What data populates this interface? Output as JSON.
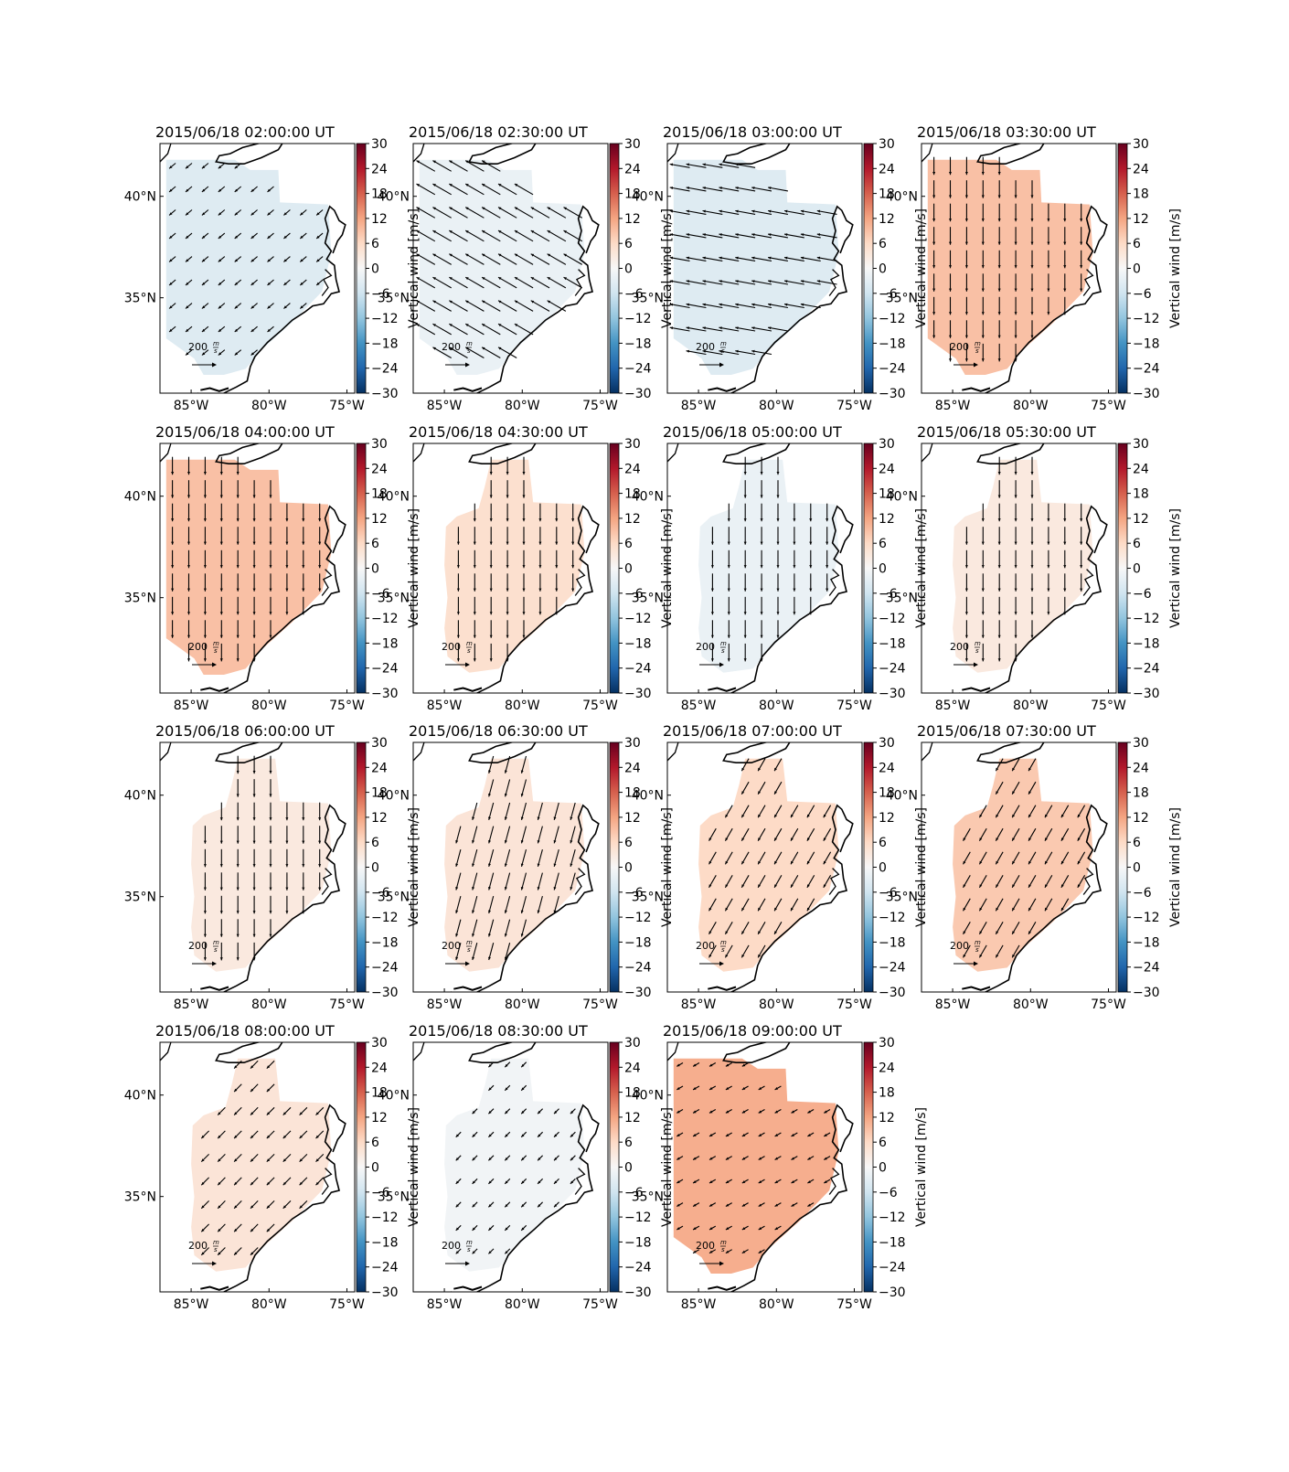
{
  "chart_data": {
    "type": "map-panels",
    "colorbar": {
      "label": "Vertical wind [m/s]",
      "min": -30,
      "max": 30,
      "ticks": [
        30,
        24,
        18,
        12,
        6,
        0,
        -6,
        -12,
        -18,
        -24,
        -30
      ],
      "tick_labels": [
        "30",
        "24",
        "18",
        "12",
        "6",
        "0",
        "−6",
        "−12",
        "−18",
        "−24",
        "−30"
      ],
      "colormap": "RdBu_r"
    },
    "lon_range": [
      -87,
      -74.5
    ],
    "lat_range": [
      30.3,
      42.6
    ],
    "lon_ticks": [
      -85,
      -80,
      -75
    ],
    "lon_tick_labels": [
      "85°W",
      "80°W",
      "75°W"
    ],
    "lat_ticks": [
      40,
      35
    ],
    "lat_tick_labels": [
      "40°N",
      "35°N"
    ],
    "reference_vector": {
      "label_number": "200",
      "label_unit_top": "m",
      "label_unit_bottom": "s"
    },
    "panels": [
      {
        "title": "2015/06/18 02:00:00 UT",
        "vertical_wind": -4,
        "flow_dir_deg": 230,
        "arrow_scale": 0.35,
        "shape": "big"
      },
      {
        "title": "2015/06/18 02:30:00 UT",
        "vertical_wind": -2,
        "flow_dir_deg": 300,
        "arrow_scale": 0.9,
        "shape": "big"
      },
      {
        "title": "2015/06/18 03:00:00 UT",
        "vertical_wind": -4,
        "flow_dir_deg": 280,
        "arrow_scale": 0.85,
        "shape": "big"
      },
      {
        "title": "2015/06/18 03:30:00 UT",
        "vertical_wind": 9,
        "flow_dir_deg": 180,
        "arrow_scale": 0.75,
        "shape": "big"
      },
      {
        "title": "2015/06/18 04:00:00 UT",
        "vertical_wind": 9,
        "flow_dir_deg": 180,
        "arrow_scale": 0.75,
        "shape": "big"
      },
      {
        "title": "2015/06/18 04:30:00 UT",
        "vertical_wind": 5,
        "flow_dir_deg": 180,
        "arrow_scale": 0.75,
        "shape": "narrow"
      },
      {
        "title": "2015/06/18 05:00:00 UT",
        "vertical_wind": -2,
        "flow_dir_deg": 180,
        "arrow_scale": 0.75,
        "shape": "narrow"
      },
      {
        "title": "2015/06/18 05:30:00 UT",
        "vertical_wind": 3,
        "flow_dir_deg": 180,
        "arrow_scale": 0.75,
        "shape": "narrow"
      },
      {
        "title": "2015/06/18 06:00:00 UT",
        "vertical_wind": 3,
        "flow_dir_deg": 180,
        "arrow_scale": 0.75,
        "shape": "narrow"
      },
      {
        "title": "2015/06/18 06:30:00 UT",
        "vertical_wind": 4,
        "flow_dir_deg": 195,
        "arrow_scale": 0.75,
        "shape": "narrow"
      },
      {
        "title": "2015/06/18 07:00:00 UT",
        "vertical_wind": 6,
        "flow_dir_deg": 210,
        "arrow_scale": 0.6,
        "shape": "narrow"
      },
      {
        "title": "2015/06/18 07:30:00 UT",
        "vertical_wind": 8,
        "flow_dir_deg": 210,
        "arrow_scale": 0.6,
        "shape": "narrow"
      },
      {
        "title": "2015/06/18 08:00:00 UT",
        "vertical_wind": 4,
        "flow_dir_deg": 225,
        "arrow_scale": 0.45,
        "shape": "narrow"
      },
      {
        "title": "2015/06/18 08:30:00 UT",
        "vertical_wind": -1,
        "flow_dir_deg": 225,
        "arrow_scale": 0.3,
        "shape": "narrow"
      },
      {
        "title": "2015/06/18 09:00:00 UT",
        "vertical_wind": 11,
        "flow_dir_deg": 240,
        "arrow_scale": 0.3,
        "shape": "big"
      }
    ]
  }
}
